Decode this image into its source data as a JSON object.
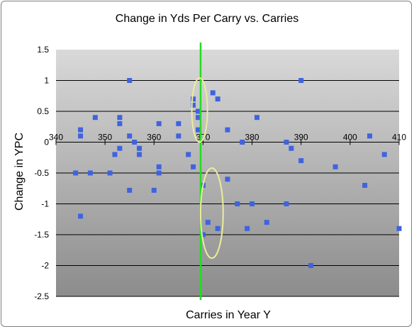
{
  "chart_data": {
    "type": "scatter",
    "title": "Change in Yds Per Carry vs. Carries",
    "xlabel": "Carries in Year Y",
    "ylabel": "Change in YPC",
    "xlim": [
      340,
      410
    ],
    "ylim": [
      -2.5,
      1.5
    ],
    "xticks": [
      "340",
      "350",
      "360",
      "370",
      "380",
      "390",
      "400",
      "410"
    ],
    "yticks": [
      "1.5",
      "1",
      "0.5",
      "0",
      "-0.5",
      "-1",
      "-1.5",
      "-2",
      "-2.5"
    ],
    "grid": true,
    "legend": "none",
    "vline_x": 369.5,
    "series": [
      {
        "color": "#3f63e0",
        "points": [
          [
            344,
            -0.5
          ],
          [
            345,
            0.2
          ],
          [
            345,
            0.1
          ],
          [
            345,
            -1.2
          ],
          [
            347,
            -0.5
          ],
          [
            348,
            0.4
          ],
          [
            351,
            -0.5
          ],
          [
            352,
            -0.2
          ],
          [
            353,
            0.4
          ],
          [
            353,
            0.3
          ],
          [
            353,
            -0.1
          ],
          [
            355,
            1.0
          ],
          [
            355,
            0.1
          ],
          [
            355,
            -0.78
          ],
          [
            356,
            0.0
          ],
          [
            357,
            -0.1
          ],
          [
            357,
            -0.2
          ],
          [
            360,
            -0.78
          ],
          [
            361,
            0.3
          ],
          [
            361,
            -0.4
          ],
          [
            361,
            -0.5
          ],
          [
            365,
            0.3
          ],
          [
            365,
            0.1
          ],
          [
            367,
            -0.2
          ],
          [
            368,
            0.7
          ],
          [
            368,
            0.6
          ],
          [
            368,
            -0.4
          ],
          [
            369,
            0.5
          ],
          [
            369,
            0.4
          ],
          [
            369,
            0.2
          ],
          [
            370,
            -0.7
          ],
          [
            370,
            -1.5
          ],
          [
            371,
            -1.3
          ],
          [
            372,
            0.8
          ],
          [
            373,
            0.7
          ],
          [
            373,
            -1.4
          ],
          [
            375,
            0.2
          ],
          [
            375,
            -0.6
          ],
          [
            377,
            -1.0
          ],
          [
            378,
            0.0
          ],
          [
            379,
            -1.4
          ],
          [
            380,
            -1.0
          ],
          [
            381,
            0.4
          ],
          [
            383,
            -1.3
          ],
          [
            387,
            0.0
          ],
          [
            387,
            -1.0
          ],
          [
            388,
            -0.1
          ],
          [
            390,
            1.0
          ],
          [
            390,
            -0.3
          ],
          [
            392,
            -2.0
          ],
          [
            397,
            -0.4
          ],
          [
            403,
            -0.7
          ],
          [
            404,
            0.1
          ],
          [
            407,
            -0.2
          ],
          [
            410,
            -1.4
          ]
        ]
      }
    ],
    "annotations": {
      "vline_color": "#22dd22",
      "ellipse_color": "#ecec9c",
      "ellipses": [
        {
          "cx": 369.3,
          "cy": 0.52,
          "rx": 1.6,
          "ry": 0.52
        },
        {
          "cx": 371.8,
          "cy": -1.15,
          "rx": 2.3,
          "ry": 0.73
        }
      ]
    },
    "colors": {
      "plot_top": "#d9d9d9",
      "plot_bottom": "#8c8c8c",
      "grid": "#000000"
    }
  }
}
